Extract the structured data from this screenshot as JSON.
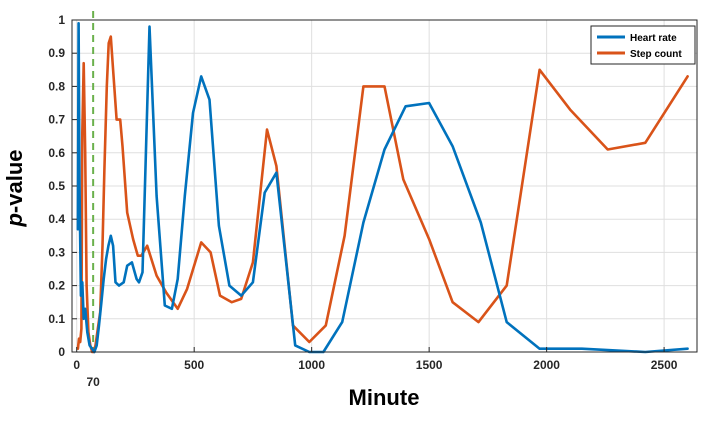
{
  "chart_data": {
    "type": "line",
    "xlabel": "Minute",
    "ylabel_italic": "p",
    "ylabel_rest": "-value",
    "xlim": [
      -20,
      2640
    ],
    "ylim": [
      0,
      1
    ],
    "xticks": [
      0,
      500,
      1000,
      1500,
      2000,
      2500
    ],
    "yticks": [
      0,
      0.1,
      0.2,
      0.3,
      0.4,
      0.5,
      0.6,
      0.7,
      0.8,
      0.9,
      1
    ],
    "ytick_labels": [
      "0",
      "0.1",
      "0.2",
      "0.3",
      "0.4",
      "0.5",
      "0.6",
      "0.7",
      "0.8",
      "0.9",
      "1"
    ],
    "grid": true,
    "legend_position": "top-right",
    "annotation": {
      "x": 70,
      "label": "70",
      "style": "dashed",
      "color": "#6ab04c"
    },
    "series": [
      {
        "name": "Heart rate",
        "color": "#0072BD",
        "points": [
          [
            5,
            0.37
          ],
          [
            8,
            0.99
          ],
          [
            12,
            0.5
          ],
          [
            18,
            0.17
          ],
          [
            24,
            0.21
          ],
          [
            30,
            0.1
          ],
          [
            36,
            0.13
          ],
          [
            45,
            0.06
          ],
          [
            55,
            0.02
          ],
          [
            65,
            0.01
          ],
          [
            75,
            0.0
          ],
          [
            85,
            0.02
          ],
          [
            95,
            0.08
          ],
          [
            105,
            0.15
          ],
          [
            115,
            0.22
          ],
          [
            125,
            0.28
          ],
          [
            135,
            0.32
          ],
          [
            145,
            0.35
          ],
          [
            155,
            0.32
          ],
          [
            165,
            0.21
          ],
          [
            180,
            0.2
          ],
          [
            200,
            0.21
          ],
          [
            215,
            0.26
          ],
          [
            235,
            0.27
          ],
          [
            255,
            0.22
          ],
          [
            265,
            0.21
          ],
          [
            280,
            0.24
          ],
          [
            310,
            0.98
          ],
          [
            340,
            0.47
          ],
          [
            375,
            0.14
          ],
          [
            405,
            0.13
          ],
          [
            430,
            0.22
          ],
          [
            460,
            0.47
          ],
          [
            495,
            0.72
          ],
          [
            530,
            0.83
          ],
          [
            565,
            0.76
          ],
          [
            605,
            0.38
          ],
          [
            650,
            0.2
          ],
          [
            700,
            0.17
          ],
          [
            750,
            0.21
          ],
          [
            800,
            0.48
          ],
          [
            850,
            0.54
          ],
          [
            930,
            0.02
          ],
          [
            990,
            0.0
          ],
          [
            1050,
            0.0
          ],
          [
            1130,
            0.09
          ],
          [
            1220,
            0.39
          ],
          [
            1310,
            0.61
          ],
          [
            1400,
            0.74
          ],
          [
            1500,
            0.75
          ],
          [
            1600,
            0.62
          ],
          [
            1720,
            0.39
          ],
          [
            1830,
            0.09
          ],
          [
            1970,
            0.01
          ],
          [
            2150,
            0.01
          ],
          [
            2420,
            0.0
          ],
          [
            2600,
            0.01
          ]
        ]
      },
      {
        "name": "Step count",
        "color": "#D95319",
        "points": [
          [
            5,
            0.01
          ],
          [
            10,
            0.04
          ],
          [
            15,
            0.03
          ],
          [
            20,
            0.07
          ],
          [
            24,
            0.66
          ],
          [
            30,
            0.87
          ],
          [
            36,
            0.6
          ],
          [
            42,
            0.2
          ],
          [
            50,
            0.06
          ],
          [
            58,
            0.02
          ],
          [
            66,
            0.0
          ],
          [
            72,
            0.0
          ],
          [
            80,
            0.02
          ],
          [
            90,
            0.07
          ],
          [
            100,
            0.12
          ],
          [
            110,
            0.32
          ],
          [
            118,
            0.55
          ],
          [
            128,
            0.8
          ],
          [
            136,
            0.93
          ],
          [
            145,
            0.95
          ],
          [
            155,
            0.85
          ],
          [
            170,
            0.7
          ],
          [
            185,
            0.7
          ],
          [
            195,
            0.62
          ],
          [
            215,
            0.42
          ],
          [
            240,
            0.34
          ],
          [
            260,
            0.29
          ],
          [
            275,
            0.29
          ],
          [
            300,
            0.32
          ],
          [
            340,
            0.23
          ],
          [
            380,
            0.18
          ],
          [
            430,
            0.13
          ],
          [
            470,
            0.19
          ],
          [
            530,
            0.33
          ],
          [
            570,
            0.3
          ],
          [
            610,
            0.17
          ],
          [
            660,
            0.15
          ],
          [
            700,
            0.16
          ],
          [
            750,
            0.27
          ],
          [
            810,
            0.67
          ],
          [
            850,
            0.56
          ],
          [
            920,
            0.08
          ],
          [
            990,
            0.03
          ],
          [
            1060,
            0.08
          ],
          [
            1140,
            0.35
          ],
          [
            1220,
            0.8
          ],
          [
            1310,
            0.8
          ],
          [
            1390,
            0.52
          ],
          [
            1500,
            0.34
          ],
          [
            1600,
            0.15
          ],
          [
            1710,
            0.09
          ],
          [
            1830,
            0.2
          ],
          [
            1970,
            0.85
          ],
          [
            2100,
            0.73
          ],
          [
            2260,
            0.61
          ],
          [
            2420,
            0.63
          ],
          [
            2600,
            0.83
          ]
        ]
      }
    ]
  }
}
